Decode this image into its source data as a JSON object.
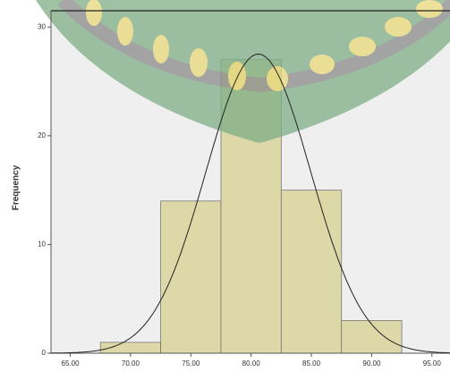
{
  "chart_data": {
    "type": "histogram",
    "y_label": "Frequency",
    "bins": [
      67.5,
      72.5,
      77.5,
      82.5,
      87.5,
      92.5
    ],
    "values": [
      1,
      14,
      27,
      15,
      3
    ],
    "color": "#dcd8a8",
    "normal_curve": {
      "mean": 80.6,
      "std_dev": 4.35
    },
    "xlim": [
      63.4,
      96.5
    ],
    "xticks": [
      {
        "value": 65,
        "label": "65.00"
      },
      {
        "value": 70,
        "label": "70.00"
      },
      {
        "value": 75,
        "label": "75.00"
      },
      {
        "value": 80,
        "label": "80.00"
      },
      {
        "value": 85,
        "label": "85.00"
      },
      {
        "value": 90,
        "label": "90.00"
      },
      {
        "value": 95,
        "label": "95.00"
      }
    ],
    "ylim": [
      0,
      31.5
    ],
    "yticks": [
      0,
      10,
      20,
      30
    ]
  }
}
